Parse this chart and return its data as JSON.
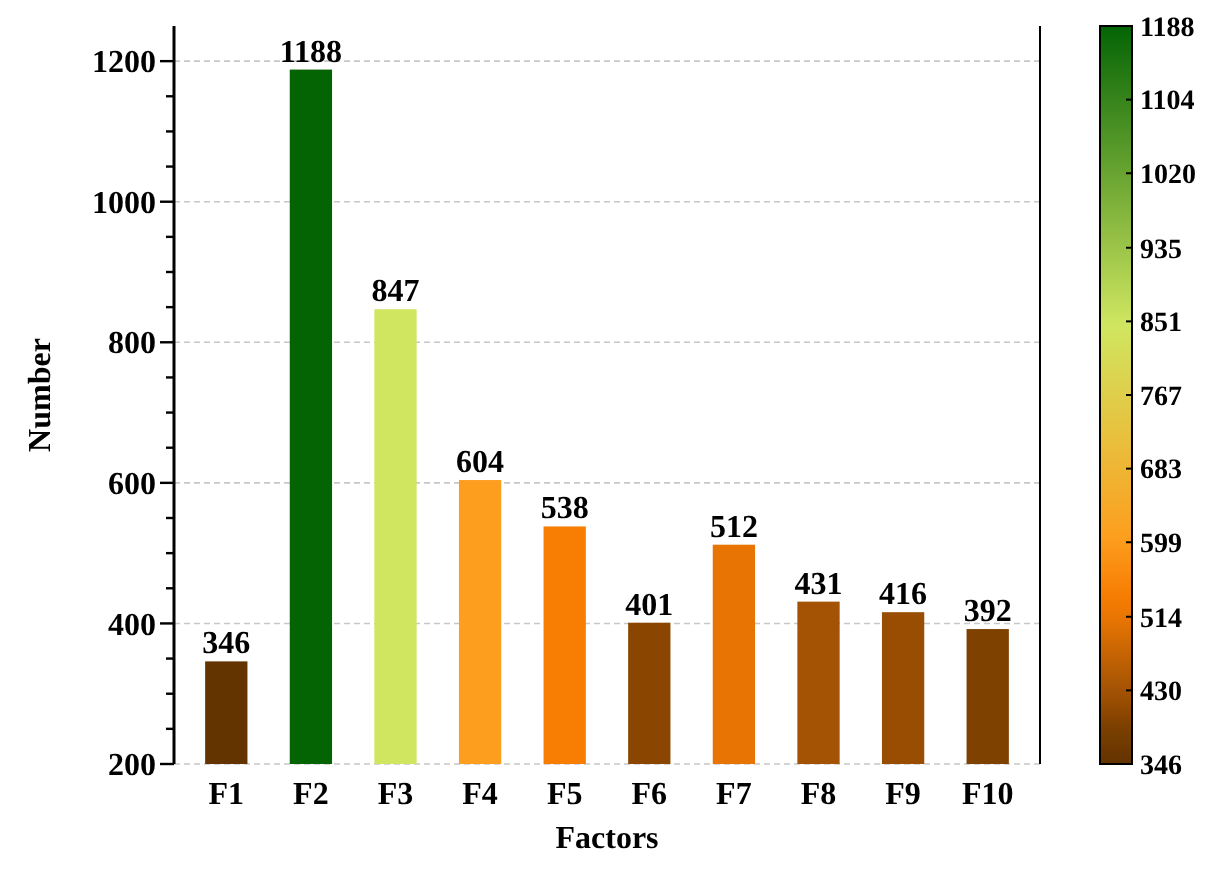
{
  "chart_data": {
    "type": "bar",
    "xlabel": "Factors",
    "ylabel": "Number",
    "categories": [
      "F1",
      "F2",
      "F3",
      "F4",
      "F5",
      "F6",
      "F7",
      "F8",
      "F9",
      "F10"
    ],
    "values": [
      346,
      1188,
      847,
      604,
      538,
      401,
      512,
      431,
      416,
      392
    ],
    "colors": [
      "#633300",
      "#046404",
      "#d0e660",
      "#fd9e1e",
      "#f77d03",
      "#8a4500",
      "#e87503",
      "#a45304",
      "#984d02",
      "#7e4100"
    ],
    "ylim": [
      200,
      1250
    ],
    "yticks": [
      200,
      {
        "value": 250,
        "label": null
      },
      {
        "value": 300,
        "label": null
      },
      {
        "value": 350,
        "label": null
      },
      400,
      {
        "value": 450,
        "label": null
      },
      {
        "value": 500,
        "label": null
      },
      {
        "value": 550,
        "label": null
      },
      600,
      {
        "value": 650,
        "label": null
      },
      {
        "value": 700,
        "label": null
      },
      {
        "value": 750,
        "label": null
      },
      800,
      {
        "value": 850,
        "label": null
      },
      {
        "value": 900,
        "label": null
      },
      {
        "value": 950,
        "label": null
      },
      1000,
      {
        "value": 1050,
        "label": null
      },
      {
        "value": 1100,
        "label": null
      },
      {
        "value": 1150,
        "label": null
      },
      1200
    ],
    "grid": "y",
    "data_labels": true,
    "clim": [
      346,
      1188
    ],
    "cticks": [
      346,
      430,
      514,
      599,
      683,
      767,
      851,
      935,
      1020,
      1104,
      1188
    ]
  }
}
